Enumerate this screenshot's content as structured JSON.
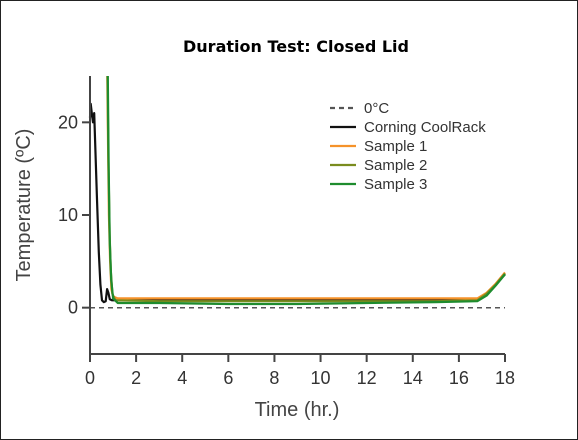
{
  "chart_data": {
    "type": "line",
    "title": "Duration Test: Closed Lid",
    "xlabel": "Time (hr.)",
    "ylabel": "Temperature (ºC)",
    "xlim": [
      0,
      18
    ],
    "ylim": [
      -5,
      25
    ],
    "xticks": [
      "0",
      "2",
      "4",
      "6",
      "8",
      "10",
      "12",
      "14",
      "16",
      "18"
    ],
    "yticks": [
      "0",
      "10",
      "20"
    ],
    "legend_position": "top-right",
    "grid": false,
    "series": [
      {
        "name": "0°C",
        "color": "#555555",
        "dashed": true,
        "points": [
          [
            0,
            0
          ],
          [
            18,
            0
          ]
        ]
      },
      {
        "name": "Corning CoolRack",
        "color": "#111111",
        "points": [
          [
            0,
            20.5
          ],
          [
            0.03,
            22
          ],
          [
            0.08,
            21
          ],
          [
            0.13,
            20
          ],
          [
            0.18,
            21
          ],
          [
            0.22,
            18
          ],
          [
            0.3,
            12
          ],
          [
            0.38,
            6
          ],
          [
            0.45,
            2.5
          ],
          [
            0.52,
            0.8
          ],
          [
            0.6,
            0.6
          ],
          [
            0.68,
            0.7
          ],
          [
            0.74,
            2
          ],
          [
            0.8,
            1.6
          ],
          [
            0.86,
            0.9
          ],
          [
            0.95,
            0.8
          ],
          [
            3,
            0.8
          ],
          [
            6,
            0.8
          ],
          [
            9,
            0.8
          ],
          [
            12,
            0.8
          ],
          [
            15,
            0.8
          ],
          [
            16.8,
            0.8
          ],
          [
            17.2,
            1.4
          ],
          [
            17.6,
            2.5
          ],
          [
            18,
            3.6
          ]
        ]
      },
      {
        "name": "Sample 1",
        "color": "#F5922A",
        "points": [
          [
            0.75,
            25
          ],
          [
            0.78,
            18
          ],
          [
            0.82,
            10
          ],
          [
            0.87,
            5
          ],
          [
            0.93,
            2
          ],
          [
            1,
            1.2
          ],
          [
            1.2,
            1
          ],
          [
            3,
            1
          ],
          [
            6,
            1
          ],
          [
            9,
            1
          ],
          [
            12,
            1
          ],
          [
            15,
            1
          ],
          [
            16.8,
            1
          ],
          [
            17.2,
            1.6
          ],
          [
            17.6,
            2.6
          ],
          [
            18,
            3.8
          ]
        ]
      },
      {
        "name": "Sample 2",
        "color": "#7A8C1E",
        "points": [
          [
            0.76,
            25
          ],
          [
            0.8,
            16
          ],
          [
            0.85,
            8
          ],
          [
            0.9,
            4
          ],
          [
            0.97,
            1.5
          ],
          [
            1.1,
            0.8
          ],
          [
            3,
            0.7
          ],
          [
            6,
            0.7
          ],
          [
            9,
            0.7
          ],
          [
            12,
            0.7
          ],
          [
            15,
            0.7
          ],
          [
            16.8,
            0.8
          ],
          [
            17.2,
            1.5
          ],
          [
            17.6,
            2.5
          ],
          [
            18,
            3.7
          ]
        ]
      },
      {
        "name": "Sample 3",
        "color": "#1E8C2E",
        "points": [
          [
            0.77,
            25
          ],
          [
            0.81,
            15
          ],
          [
            0.86,
            7
          ],
          [
            0.92,
            3
          ],
          [
            1,
            1
          ],
          [
            1.2,
            0.5
          ],
          [
            3,
            0.5
          ],
          [
            6,
            0.4
          ],
          [
            9,
            0.4
          ],
          [
            12,
            0.5
          ],
          [
            15,
            0.6
          ],
          [
            16.8,
            0.7
          ],
          [
            17.2,
            1.3
          ],
          [
            17.6,
            2.4
          ],
          [
            18,
            3.6
          ]
        ]
      }
    ]
  }
}
